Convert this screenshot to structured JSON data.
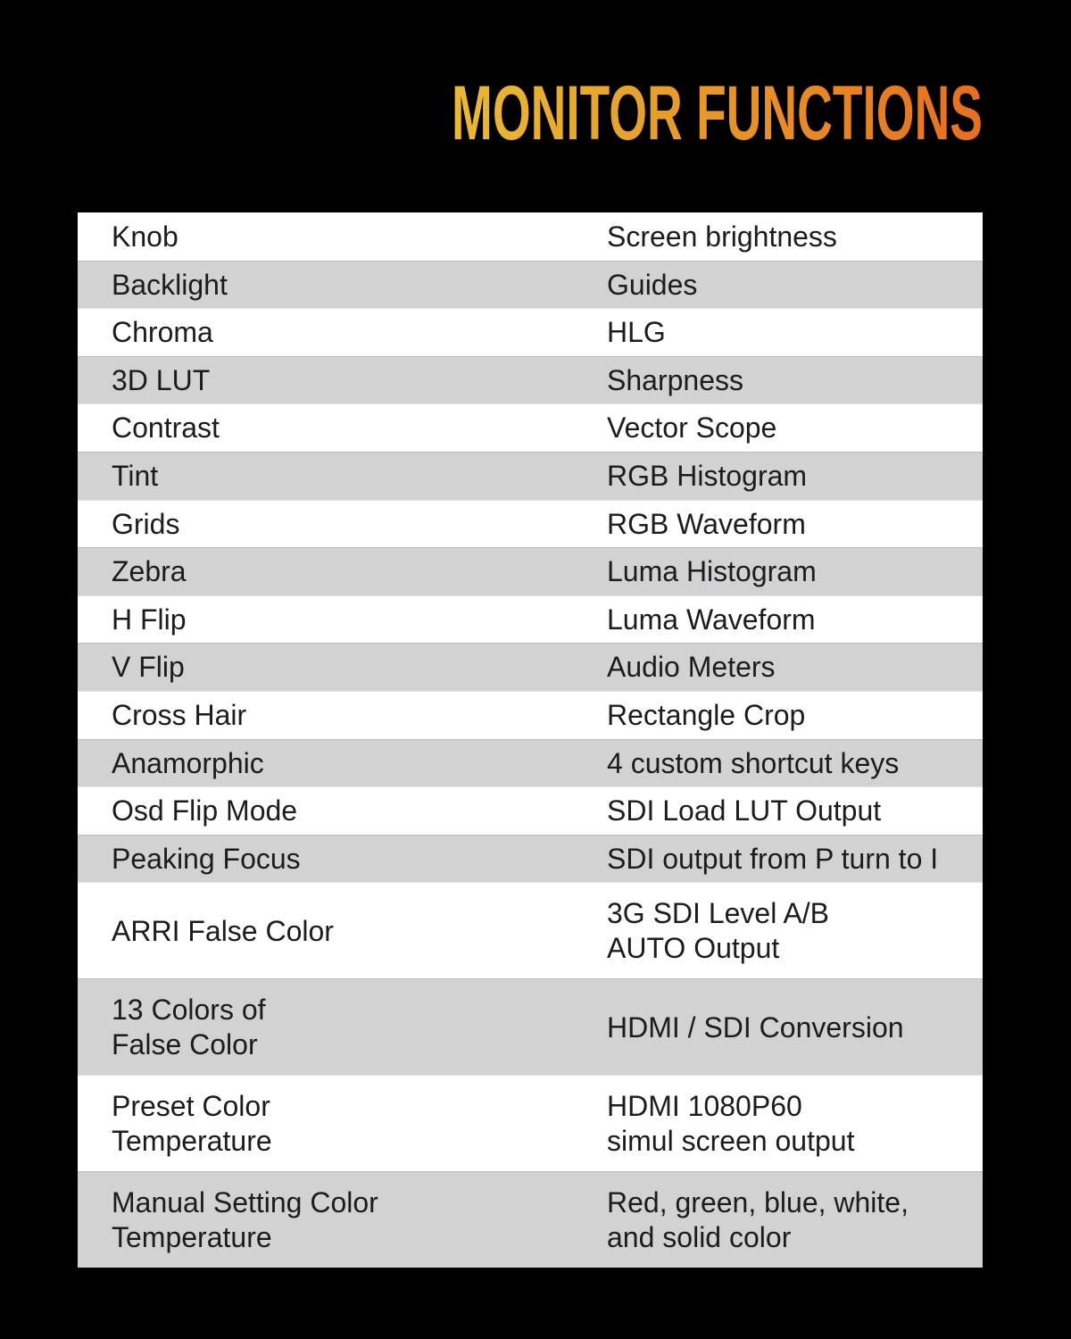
{
  "page": {
    "background": "#000000"
  },
  "header": {
    "title": "MONITOR FUNCTIONS",
    "gradient": {
      "start": "#E9BA33",
      "mid": "#E89A26",
      "end": "#E76F1D"
    }
  },
  "table": {
    "row_colors": {
      "white": "#FFFFFF",
      "gray": "#D2D2D2"
    },
    "text_color": "#1C1C1E",
    "columns": [
      "feature",
      "description"
    ],
    "rows": [
      {
        "feature": [
          "Knob"
        ],
        "description": [
          "Screen brightness"
        ]
      },
      {
        "feature": [
          "Backlight"
        ],
        "description": [
          "Guides"
        ]
      },
      {
        "feature": [
          "Chroma"
        ],
        "description": [
          "HLG"
        ]
      },
      {
        "feature": [
          "3D LUT"
        ],
        "description": [
          "Sharpness"
        ]
      },
      {
        "feature": [
          "Contrast"
        ],
        "description": [
          "Vector Scope"
        ]
      },
      {
        "feature": [
          "Tint"
        ],
        "description": [
          "RGB Histogram"
        ]
      },
      {
        "feature": [
          "Grids"
        ],
        "description": [
          "RGB Waveform"
        ]
      },
      {
        "feature": [
          "Zebra"
        ],
        "description": [
          "Luma Histogram"
        ]
      },
      {
        "feature": [
          "H Flip"
        ],
        "description": [
          "Luma Waveform"
        ]
      },
      {
        "feature": [
          "V Flip"
        ],
        "description": [
          "Audio Meters"
        ]
      },
      {
        "feature": [
          "Cross Hair"
        ],
        "description": [
          "Rectangle Crop"
        ]
      },
      {
        "feature": [
          "Anamorphic"
        ],
        "description": [
          "4 custom shortcut keys"
        ]
      },
      {
        "feature": [
          "Osd Flip Mode"
        ],
        "description": [
          "SDI Load LUT Output"
        ]
      },
      {
        "feature": [
          "Peaking Focus"
        ],
        "description": [
          "SDI output from P turn to I"
        ]
      },
      {
        "feature": [
          "ARRI False Color"
        ],
        "description": [
          "3G SDI Level A/B",
          "AUTO Output"
        ]
      },
      {
        "feature": [
          "13 Colors of",
          "False Color"
        ],
        "description": [
          "HDMI / SDI Conversion"
        ]
      },
      {
        "feature": [
          "Preset Color",
          "Temperature"
        ],
        "description": [
          "HDMI 1080P60",
          "simul screen output"
        ]
      },
      {
        "feature": [
          "Manual Setting Color",
          "Temperature"
        ],
        "description": [
          "Red, green, blue, white,",
          "and solid color"
        ]
      }
    ]
  }
}
